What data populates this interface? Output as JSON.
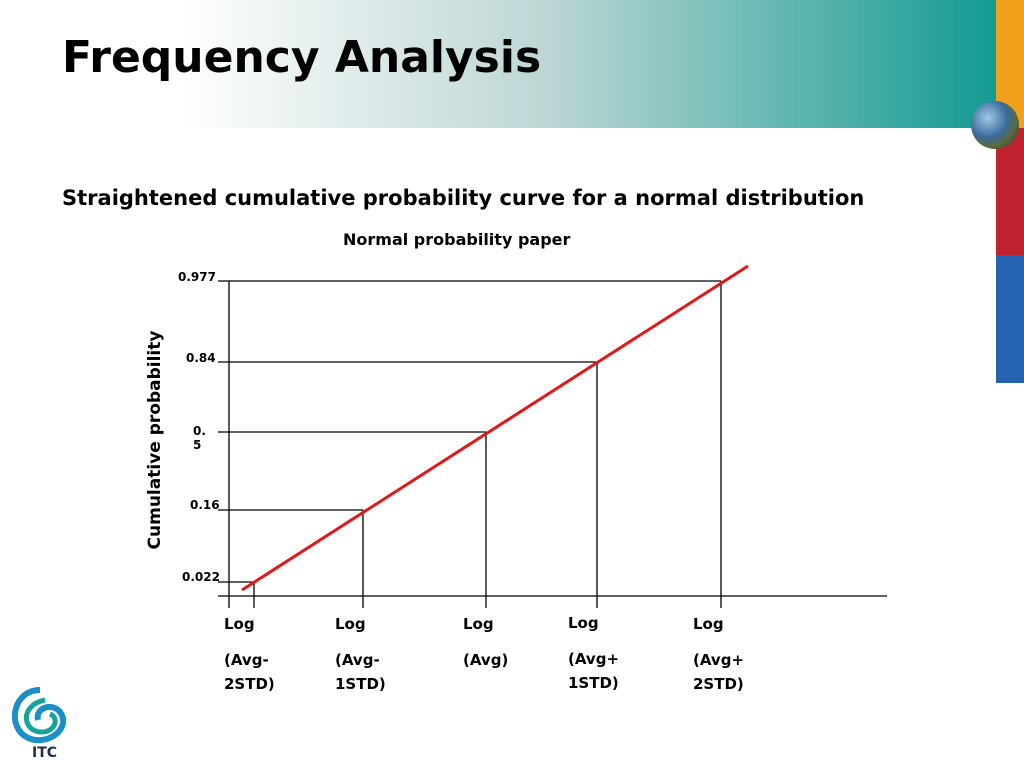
{
  "header": {
    "title": "Frequency Analysis"
  },
  "subtitle": "Straightened cumulative probability curve for a normal distribution",
  "diagram": {
    "title": "Normal probability paper",
    "y_label": "Cumulative probability",
    "y_labels": [
      "0.977",
      "0.84",
      "0. 5",
      "0.16",
      "0.022"
    ],
    "x_labels": [
      {
        "log": "Log",
        "param": "(Avg-2STD)"
      },
      {
        "log": "Log",
        "param": "(Avg-1STD)"
      },
      {
        "log": "Log",
        "param": "(Avg)"
      },
      {
        "log": "Log",
        "param": "(Avg+ 1STD)"
      },
      {
        "log": "Log",
        "param": "(Avg+ 2STD)"
      }
    ]
  },
  "logo": {
    "text": "ITC"
  }
}
